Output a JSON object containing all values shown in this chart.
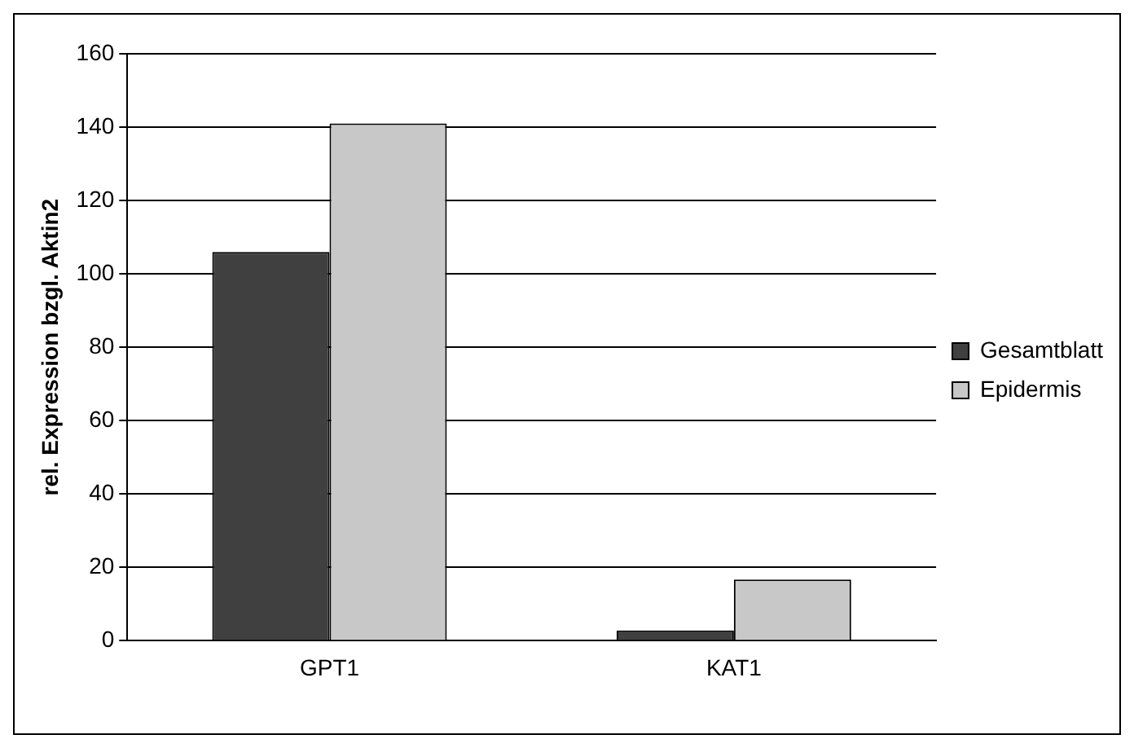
{
  "chart_data": {
    "type": "bar",
    "ylabel": "rel. Expression bzgl. Aktin2",
    "categories": [
      "GPT1",
      "KAT1"
    ],
    "series": [
      {
        "name": "Gesamtblatt",
        "color": "#404040",
        "values": [
          106,
          2.8
        ]
      },
      {
        "name": "Epidermis",
        "color": "#c8c8c8",
        "values": [
          141,
          16.7
        ]
      }
    ],
    "ylim": [
      0,
      160
    ],
    "yticks": [
      0,
      20,
      40,
      60,
      80,
      100,
      120,
      140,
      160
    ],
    "grid": "y",
    "legend": "right"
  }
}
